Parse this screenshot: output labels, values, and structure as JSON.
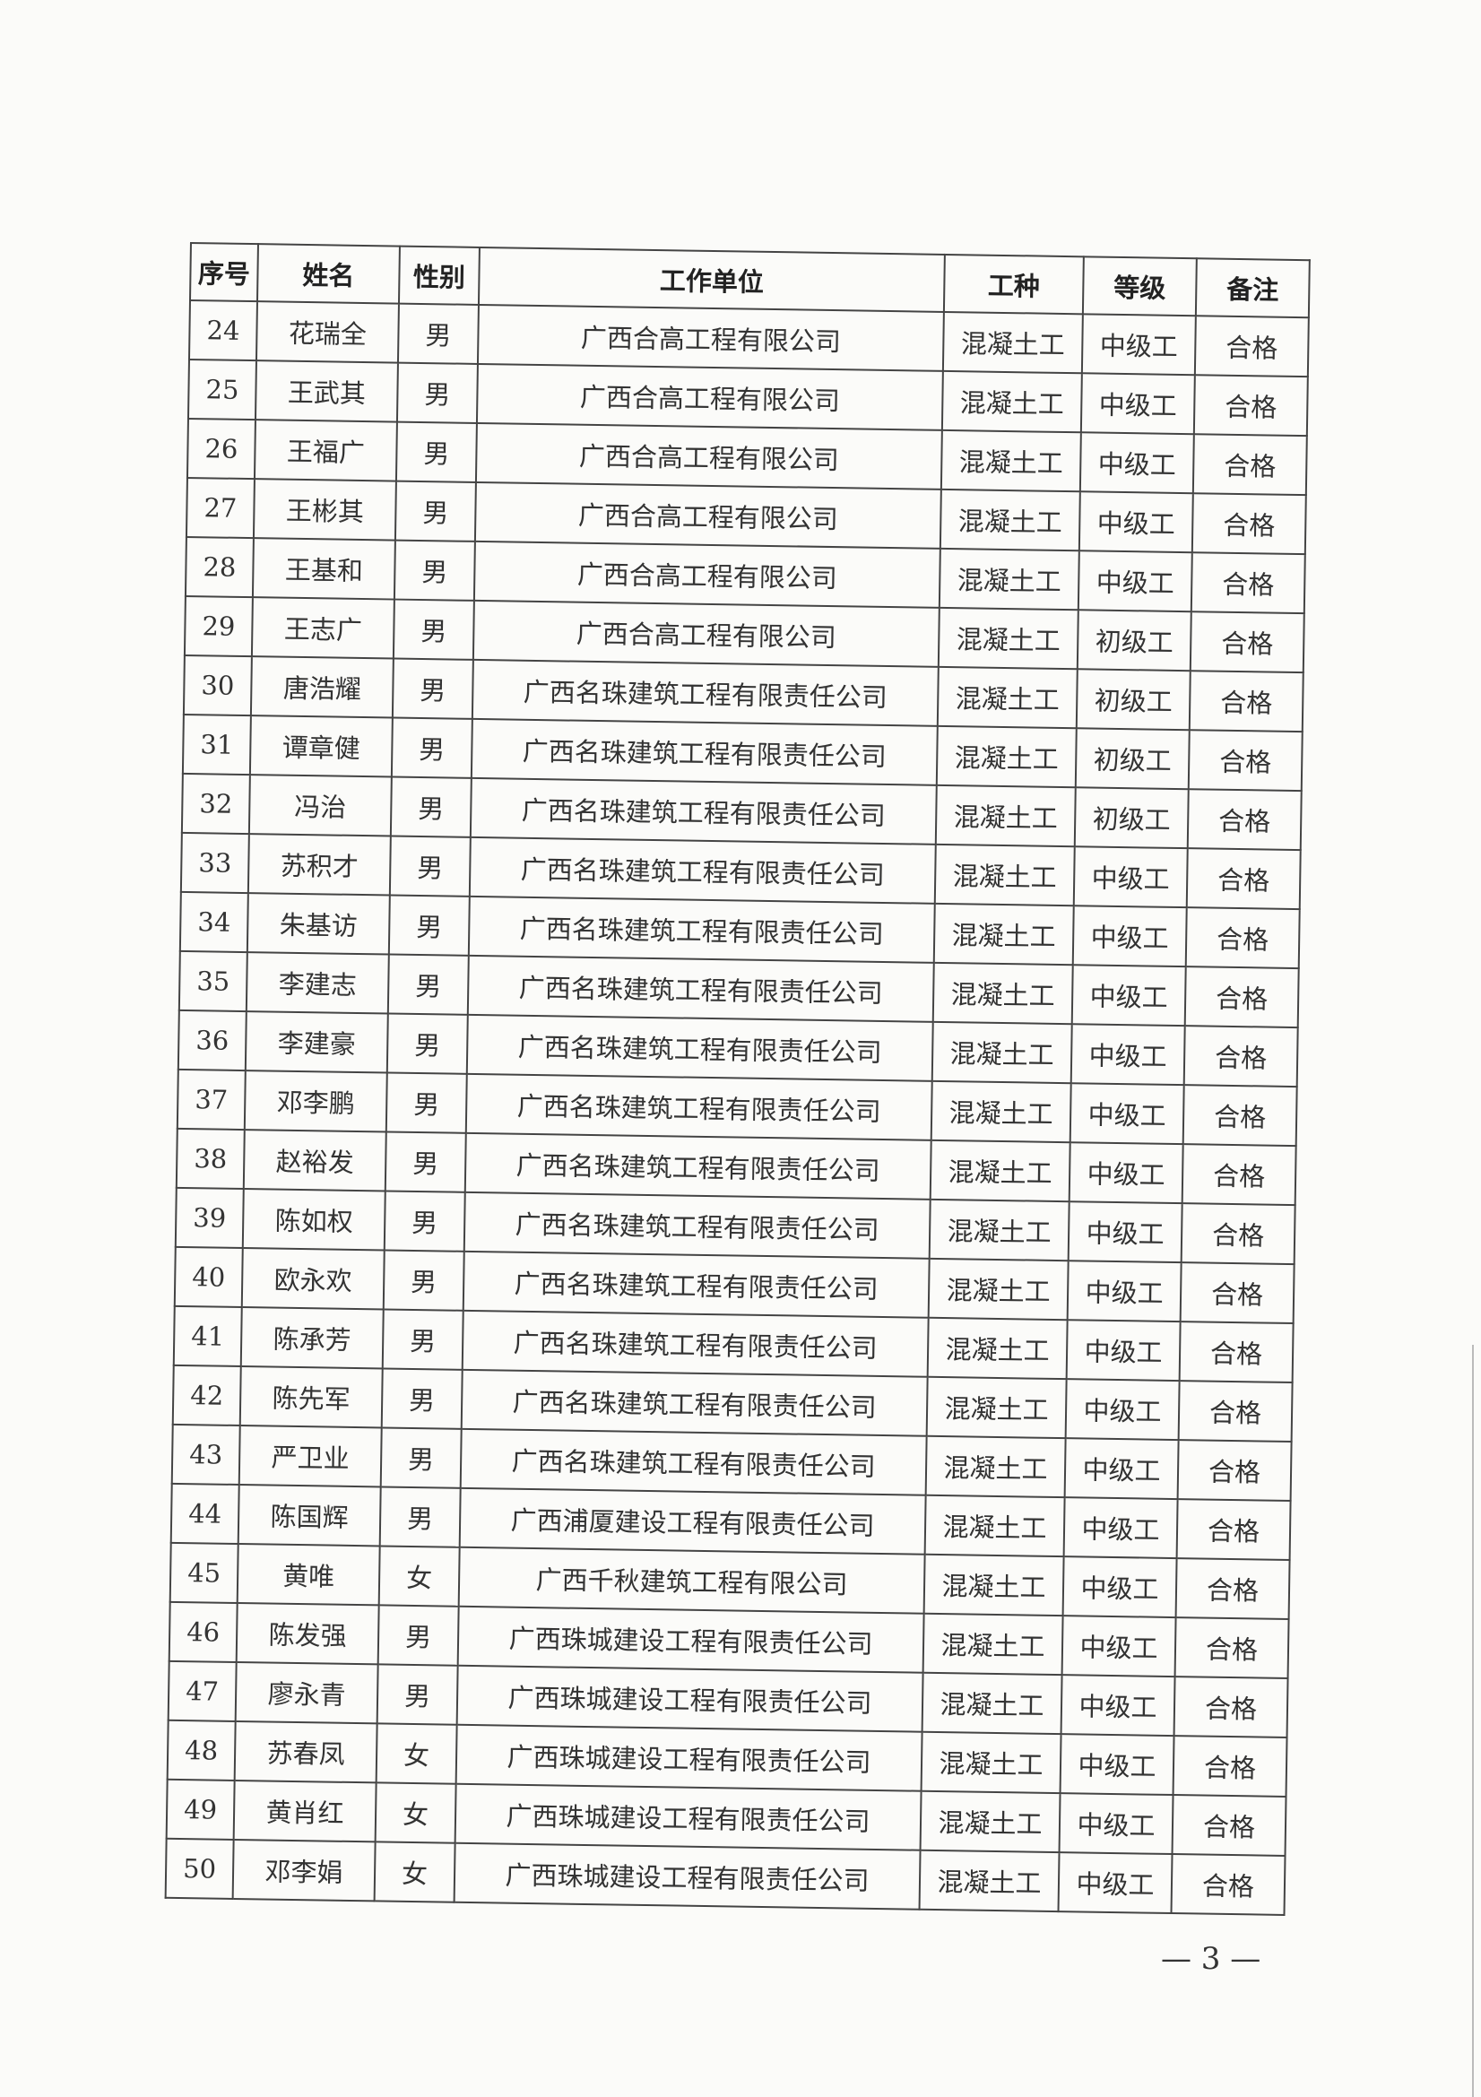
{
  "table": {
    "headers": [
      "序号",
      "姓名",
      "性别",
      "工作单位",
      "工种",
      "等级",
      "备注"
    ],
    "rows": [
      [
        "24",
        "花瑞全",
        "男",
        "广西合高工程有限公司",
        "混凝土工",
        "中级工",
        "合格"
      ],
      [
        "25",
        "王武其",
        "男",
        "广西合高工程有限公司",
        "混凝土工",
        "中级工",
        "合格"
      ],
      [
        "26",
        "王福广",
        "男",
        "广西合高工程有限公司",
        "混凝土工",
        "中级工",
        "合格"
      ],
      [
        "27",
        "王彬其",
        "男",
        "广西合高工程有限公司",
        "混凝土工",
        "中级工",
        "合格"
      ],
      [
        "28",
        "王基和",
        "男",
        "广西合高工程有限公司",
        "混凝土工",
        "中级工",
        "合格"
      ],
      [
        "29",
        "王志广",
        "男",
        "广西合高工程有限公司",
        "混凝土工",
        "初级工",
        "合格"
      ],
      [
        "30",
        "唐浩耀",
        "男",
        "广西名珠建筑工程有限责任公司",
        "混凝土工",
        "初级工",
        "合格"
      ],
      [
        "31",
        "谭章健",
        "男",
        "广西名珠建筑工程有限责任公司",
        "混凝土工",
        "初级工",
        "合格"
      ],
      [
        "32",
        "冯治",
        "男",
        "广西名珠建筑工程有限责任公司",
        "混凝土工",
        "初级工",
        "合格"
      ],
      [
        "33",
        "苏积才",
        "男",
        "广西名珠建筑工程有限责任公司",
        "混凝土工",
        "中级工",
        "合格"
      ],
      [
        "34",
        "朱基访",
        "男",
        "广西名珠建筑工程有限责任公司",
        "混凝土工",
        "中级工",
        "合格"
      ],
      [
        "35",
        "李建志",
        "男",
        "广西名珠建筑工程有限责任公司",
        "混凝土工",
        "中级工",
        "合格"
      ],
      [
        "36",
        "李建豪",
        "男",
        "广西名珠建筑工程有限责任公司",
        "混凝土工",
        "中级工",
        "合格"
      ],
      [
        "37",
        "邓李鹏",
        "男",
        "广西名珠建筑工程有限责任公司",
        "混凝土工",
        "中级工",
        "合格"
      ],
      [
        "38",
        "赵裕发",
        "男",
        "广西名珠建筑工程有限责任公司",
        "混凝土工",
        "中级工",
        "合格"
      ],
      [
        "39",
        "陈如权",
        "男",
        "广西名珠建筑工程有限责任公司",
        "混凝土工",
        "中级工",
        "合格"
      ],
      [
        "40",
        "欧永欢",
        "男",
        "广西名珠建筑工程有限责任公司",
        "混凝土工",
        "中级工",
        "合格"
      ],
      [
        "41",
        "陈承芳",
        "男",
        "广西名珠建筑工程有限责任公司",
        "混凝土工",
        "中级工",
        "合格"
      ],
      [
        "42",
        "陈先军",
        "男",
        "广西名珠建筑工程有限责任公司",
        "混凝土工",
        "中级工",
        "合格"
      ],
      [
        "43",
        "严卫业",
        "男",
        "广西名珠建筑工程有限责任公司",
        "混凝土工",
        "中级工",
        "合格"
      ],
      [
        "44",
        "陈国辉",
        "男",
        "广西浦厦建设工程有限责任公司",
        "混凝土工",
        "中级工",
        "合格"
      ],
      [
        "45",
        "黄唯",
        "女",
        "广西千秋建筑工程有限公司",
        "混凝土工",
        "中级工",
        "合格"
      ],
      [
        "46",
        "陈发强",
        "男",
        "广西珠城建设工程有限责任公司",
        "混凝土工",
        "中级工",
        "合格"
      ],
      [
        "47",
        "廖永青",
        "男",
        "广西珠城建设工程有限责任公司",
        "混凝土工",
        "中级工",
        "合格"
      ],
      [
        "48",
        "苏春凤",
        "女",
        "广西珠城建设工程有限责任公司",
        "混凝土工",
        "中级工",
        "合格"
      ],
      [
        "49",
        "黄肖红",
        "女",
        "广西珠城建设工程有限责任公司",
        "混凝土工",
        "中级工",
        "合格"
      ],
      [
        "50",
        "邓李娟",
        "女",
        "广西珠城建设工程有限责任公司",
        "混凝土工",
        "中级工",
        "合格"
      ]
    ]
  },
  "footer": {
    "page_number": "— 3 —"
  }
}
